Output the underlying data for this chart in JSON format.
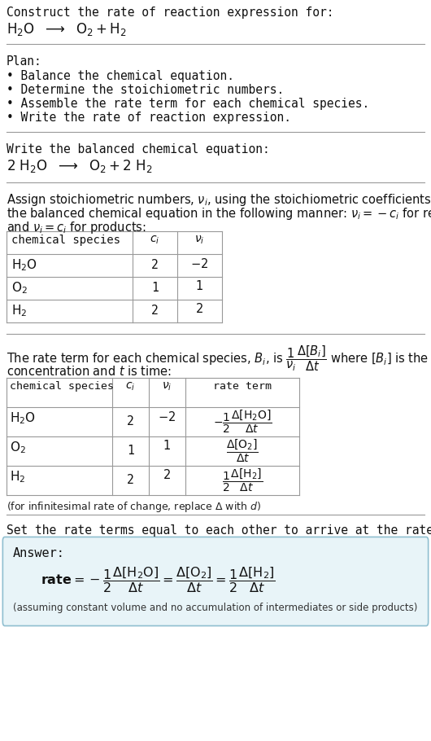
{
  "bg_color": "#ffffff",
  "answer_box_color": "#e8f4f8",
  "answer_box_edge": "#90bfd0",
  "plan_items": [
    "• Balance the chemical equation.",
    "• Determine the stoichiometric numbers.",
    "• Assemble the rate term for each chemical species.",
    "• Write the rate of reaction expression."
  ],
  "assuming_note": "(assuming constant volume and no accumulation of intermediates or side products)"
}
